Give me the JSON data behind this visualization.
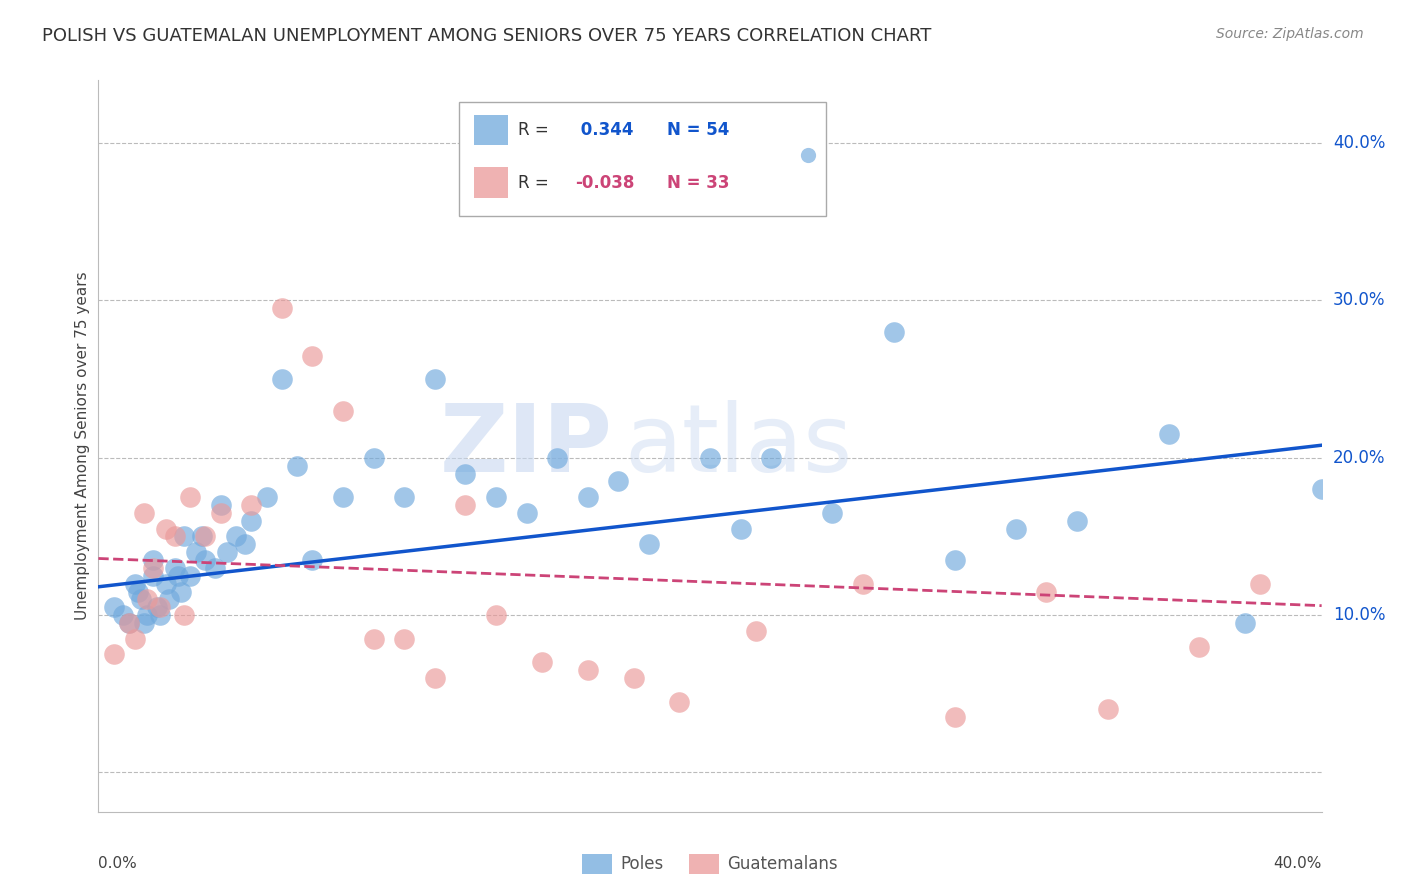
{
  "title": "POLISH VS GUATEMALAN UNEMPLOYMENT AMONG SENIORS OVER 75 YEARS CORRELATION CHART",
  "source": "Source: ZipAtlas.com",
  "ylabel": "Unemployment Among Seniors over 75 years",
  "poles_R": 0.344,
  "poles_N": 54,
  "guatemalans_R": -0.038,
  "guatemalans_N": 33,
  "poles_color": "#6fa8dc",
  "guatemalans_color": "#ea9999",
  "poles_line_color": "#1155cc",
  "guatemalans_line_color": "#cc4477",
  "background_color": "#ffffff",
  "watermark_zip": "ZIP",
  "watermark_atlas": "atlas",
  "xlim": [
    0.0,
    0.4
  ],
  "ylim": [
    -0.025,
    0.44
  ],
  "yticks": [
    0.0,
    0.1,
    0.2,
    0.3,
    0.4
  ],
  "ytick_labels": [
    "",
    "10.0%",
    "20.0%",
    "30.0%",
    "40.0%"
  ],
  "poles_x": [
    0.005,
    0.008,
    0.01,
    0.012,
    0.013,
    0.014,
    0.015,
    0.016,
    0.018,
    0.018,
    0.019,
    0.02,
    0.022,
    0.023,
    0.025,
    0.026,
    0.027,
    0.028,
    0.03,
    0.032,
    0.034,
    0.035,
    0.038,
    0.04,
    0.042,
    0.045,
    0.048,
    0.05,
    0.055,
    0.06,
    0.065,
    0.07,
    0.08,
    0.09,
    0.1,
    0.11,
    0.12,
    0.13,
    0.14,
    0.15,
    0.16,
    0.17,
    0.18,
    0.2,
    0.21,
    0.22,
    0.24,
    0.26,
    0.28,
    0.3,
    0.32,
    0.35,
    0.375,
    0.4
  ],
  "poles_y": [
    0.105,
    0.1,
    0.095,
    0.12,
    0.115,
    0.11,
    0.095,
    0.1,
    0.135,
    0.125,
    0.105,
    0.1,
    0.12,
    0.11,
    0.13,
    0.125,
    0.115,
    0.15,
    0.125,
    0.14,
    0.15,
    0.135,
    0.13,
    0.17,
    0.14,
    0.15,
    0.145,
    0.16,
    0.175,
    0.25,
    0.195,
    0.135,
    0.175,
    0.2,
    0.175,
    0.25,
    0.19,
    0.175,
    0.165,
    0.2,
    0.175,
    0.185,
    0.145,
    0.2,
    0.155,
    0.2,
    0.165,
    0.28,
    0.135,
    0.155,
    0.16,
    0.215,
    0.095,
    0.18
  ],
  "guatemalans_x": [
    0.005,
    0.01,
    0.012,
    0.015,
    0.016,
    0.018,
    0.02,
    0.022,
    0.025,
    0.028,
    0.03,
    0.035,
    0.04,
    0.05,
    0.06,
    0.07,
    0.08,
    0.09,
    0.1,
    0.11,
    0.12,
    0.13,
    0.145,
    0.16,
    0.175,
    0.19,
    0.215,
    0.25,
    0.28,
    0.31,
    0.33,
    0.36,
    0.38
  ],
  "guatemalans_y": [
    0.075,
    0.095,
    0.085,
    0.165,
    0.11,
    0.13,
    0.105,
    0.155,
    0.15,
    0.1,
    0.175,
    0.15,
    0.165,
    0.17,
    0.295,
    0.265,
    0.23,
    0.085,
    0.085,
    0.06,
    0.17,
    0.1,
    0.07,
    0.065,
    0.06,
    0.045,
    0.09,
    0.12,
    0.035,
    0.115,
    0.04,
    0.08,
    0.12
  ]
}
